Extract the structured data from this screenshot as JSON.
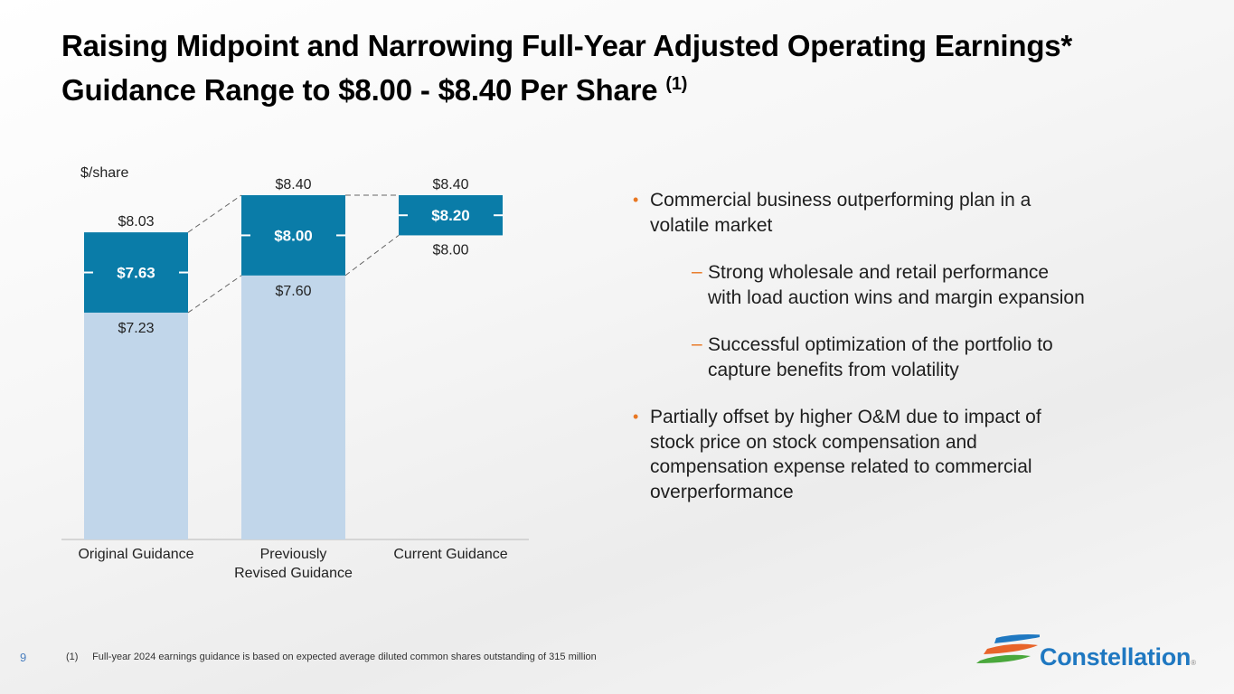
{
  "title": {
    "line1": "Raising Midpoint and Narrowing Full-Year Adjusted Operating Earnings*",
    "line2": "Guidance Range to $8.00 - $8.40 Per Share",
    "superscript": "(1)"
  },
  "chart_data": {
    "type": "bar",
    "subtype": "floating-range",
    "ylabel": "$/share",
    "categories": [
      "Original Guidance",
      "Previously Revised Guidance",
      "Current Guidance"
    ],
    "category_lines": [
      [
        "Original Guidance"
      ],
      [
        "Previously",
        "Revised Guidance"
      ],
      [
        "Current Guidance"
      ]
    ],
    "series": [
      {
        "name": "low",
        "values": [
          7.23,
          7.6,
          8.0
        ]
      },
      {
        "name": "high",
        "values": [
          8.03,
          8.4,
          8.4
        ]
      },
      {
        "name": "midpoint",
        "values": [
          7.63,
          8.0,
          8.2
        ]
      }
    ],
    "labels": {
      "low": [
        "$7.23",
        "$7.60",
        "$8.00"
      ],
      "high": [
        "$8.03",
        "$8.40",
        "$8.40"
      ],
      "midpoint": [
        "$7.63",
        "$8.00",
        "$8.20"
      ]
    },
    "ylim": [
      4.97,
      8.4
    ],
    "base_bar_shown": [
      true,
      true,
      false
    ],
    "colors": {
      "range": "#0a7ca8",
      "base": "#c1d6ea",
      "connector": "#666666",
      "axis": "#cccccc"
    },
    "grid": false
  },
  "bullets": [
    {
      "level": 1,
      "text": "Commercial business outperforming plan in a volatile market",
      "lines": [
        "Commercial business outperforming plan in a",
        "volatile market"
      ]
    },
    {
      "level": 2,
      "text": "Strong wholesale and retail performance with load auction wins and margin expansion",
      "lines": [
        "Strong wholesale and retail performance",
        "with load auction wins and margin expansion"
      ]
    },
    {
      "level": 2,
      "text": "Successful optimization of the portfolio to capture benefits from volatility",
      "lines": [
        "Successful optimization of the portfolio to",
        "capture benefits from volatility"
      ]
    },
    {
      "level": 1,
      "text": "Partially offset by higher O&M due to impact of stock price on stock compensation and compensation expense related to commercial overperformance",
      "lines": [
        "Partially offset by higher O&M due to impact of",
        "stock price on stock compensation and",
        "compensation expense related to commercial",
        "overperformance"
      ]
    }
  ],
  "bullet_marks": {
    "level1": "•",
    "level2": "–"
  },
  "footnote": {
    "number": "(1)",
    "text": "Full-year 2024 earnings guidance is based on expected average diluted common shares outstanding of 315 million"
  },
  "page_number": "9",
  "logo": {
    "name": "Constellation",
    "registered": "®"
  }
}
